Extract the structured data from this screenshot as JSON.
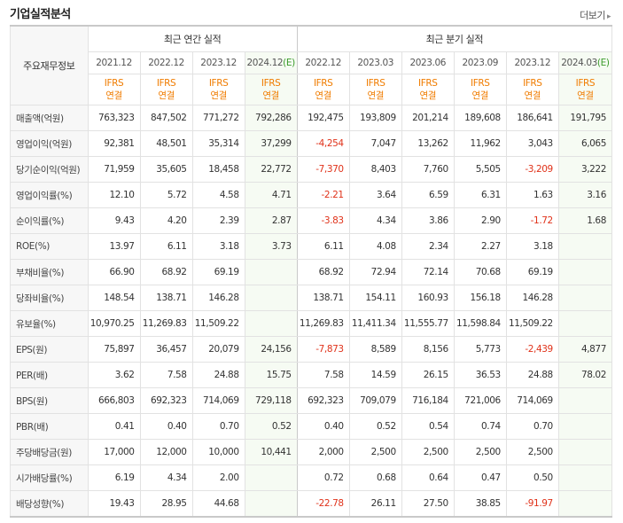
{
  "header": {
    "title": "기업실적분석",
    "more_label": "더보기"
  },
  "table": {
    "row_header_label": "주요재무정보",
    "annual_group": "최근 연간 실적",
    "quarter_group": "최근 분기 실적",
    "annual_periods": [
      {
        "label": "2021.12",
        "est": ""
      },
      {
        "label": "2022.12",
        "est": ""
      },
      {
        "label": "2023.12",
        "est": ""
      },
      {
        "label": "2024.12",
        "est": "(E)"
      }
    ],
    "quarter_periods": [
      {
        "label": "2022.12",
        "est": ""
      },
      {
        "label": "2023.03",
        "est": ""
      },
      {
        "label": "2023.06",
        "est": ""
      },
      {
        "label": "2023.09",
        "est": ""
      },
      {
        "label": "2023.12",
        "est": ""
      },
      {
        "label": "2024.03",
        "est": "(E)"
      }
    ],
    "basis_line1": "IFRS",
    "basis_line2": "연결",
    "rows": [
      {
        "label": "매출액(억원)",
        "values": [
          "763,323",
          "847,502",
          "771,272",
          "792,286",
          "192,475",
          "193,809",
          "201,214",
          "189,608",
          "186,641",
          "191,795"
        ]
      },
      {
        "label": "영업이익(억원)",
        "values": [
          "92,381",
          "48,501",
          "35,314",
          "37,299",
          "-4,254",
          "7,047",
          "13,262",
          "11,962",
          "3,043",
          "6,065"
        ]
      },
      {
        "label": "당기순이익(억원)",
        "values": [
          "71,959",
          "35,605",
          "18,458",
          "22,772",
          "-7,370",
          "8,403",
          "7,760",
          "5,505",
          "-3,209",
          "3,222"
        ]
      },
      {
        "label": "영업이익률(%)",
        "values": [
          "12.10",
          "5.72",
          "4.58",
          "4.71",
          "-2.21",
          "3.64",
          "6.59",
          "6.31",
          "1.63",
          "3.16"
        ]
      },
      {
        "label": "순이익률(%)",
        "values": [
          "9.43",
          "4.20",
          "2.39",
          "2.87",
          "-3.83",
          "4.34",
          "3.86",
          "2.90",
          "-1.72",
          "1.68"
        ]
      },
      {
        "label": "ROE(%)",
        "values": [
          "13.97",
          "6.11",
          "3.18",
          "3.73",
          "6.11",
          "4.08",
          "2.34",
          "2.27",
          "3.18",
          ""
        ]
      },
      {
        "label": "부채비율(%)",
        "values": [
          "66.90",
          "68.92",
          "69.19",
          "",
          "68.92",
          "72.94",
          "72.14",
          "70.68",
          "69.19",
          ""
        ]
      },
      {
        "label": "당좌비율(%)",
        "values": [
          "148.54",
          "138.71",
          "146.28",
          "",
          "138.71",
          "154.11",
          "160.93",
          "156.18",
          "146.28",
          ""
        ]
      },
      {
        "label": "유보율(%)",
        "values": [
          "10,970.25",
          "11,269.83",
          "11,509.22",
          "",
          "11,269.83",
          "11,411.34",
          "11,555.77",
          "11,598.84",
          "11,509.22",
          ""
        ]
      },
      {
        "label": "EPS(원)",
        "values": [
          "75,897",
          "36,457",
          "20,079",
          "24,156",
          "-7,873",
          "8,589",
          "8,156",
          "5,773",
          "-2,439",
          "4,877"
        ]
      },
      {
        "label": "PER(배)",
        "values": [
          "3.62",
          "7.58",
          "24.88",
          "15.75",
          "7.58",
          "14.59",
          "26.15",
          "36.53",
          "24.88",
          "78.02"
        ]
      },
      {
        "label": "BPS(원)",
        "values": [
          "666,803",
          "692,323",
          "714,069",
          "729,118",
          "692,323",
          "709,079",
          "716,184",
          "721,006",
          "714,069",
          ""
        ]
      },
      {
        "label": "PBR(배)",
        "values": [
          "0.41",
          "0.40",
          "0.70",
          "0.52",
          "0.40",
          "0.52",
          "0.54",
          "0.74",
          "0.70",
          ""
        ]
      },
      {
        "label": "주당배당금(원)",
        "values": [
          "17,000",
          "12,000",
          "10,000",
          "10,441",
          "2,000",
          "2,500",
          "2,500",
          "2,500",
          "2,500",
          ""
        ]
      },
      {
        "label": "시가배당률(%)",
        "values": [
          "6.19",
          "4.34",
          "2.00",
          "",
          "0.72",
          "0.68",
          "0.64",
          "0.47",
          "0.50",
          ""
        ]
      },
      {
        "label": "배당성향(%)",
        "values": [
          "19.43",
          "28.95",
          "44.68",
          "",
          "-22.78",
          "26.11",
          "27.50",
          "38.85",
          "-91.97",
          ""
        ]
      }
    ]
  },
  "colors": {
    "accent_orange": "#f07c00",
    "negative_red": "#e0321a",
    "estimate_green": "#3a9b2a"
  }
}
